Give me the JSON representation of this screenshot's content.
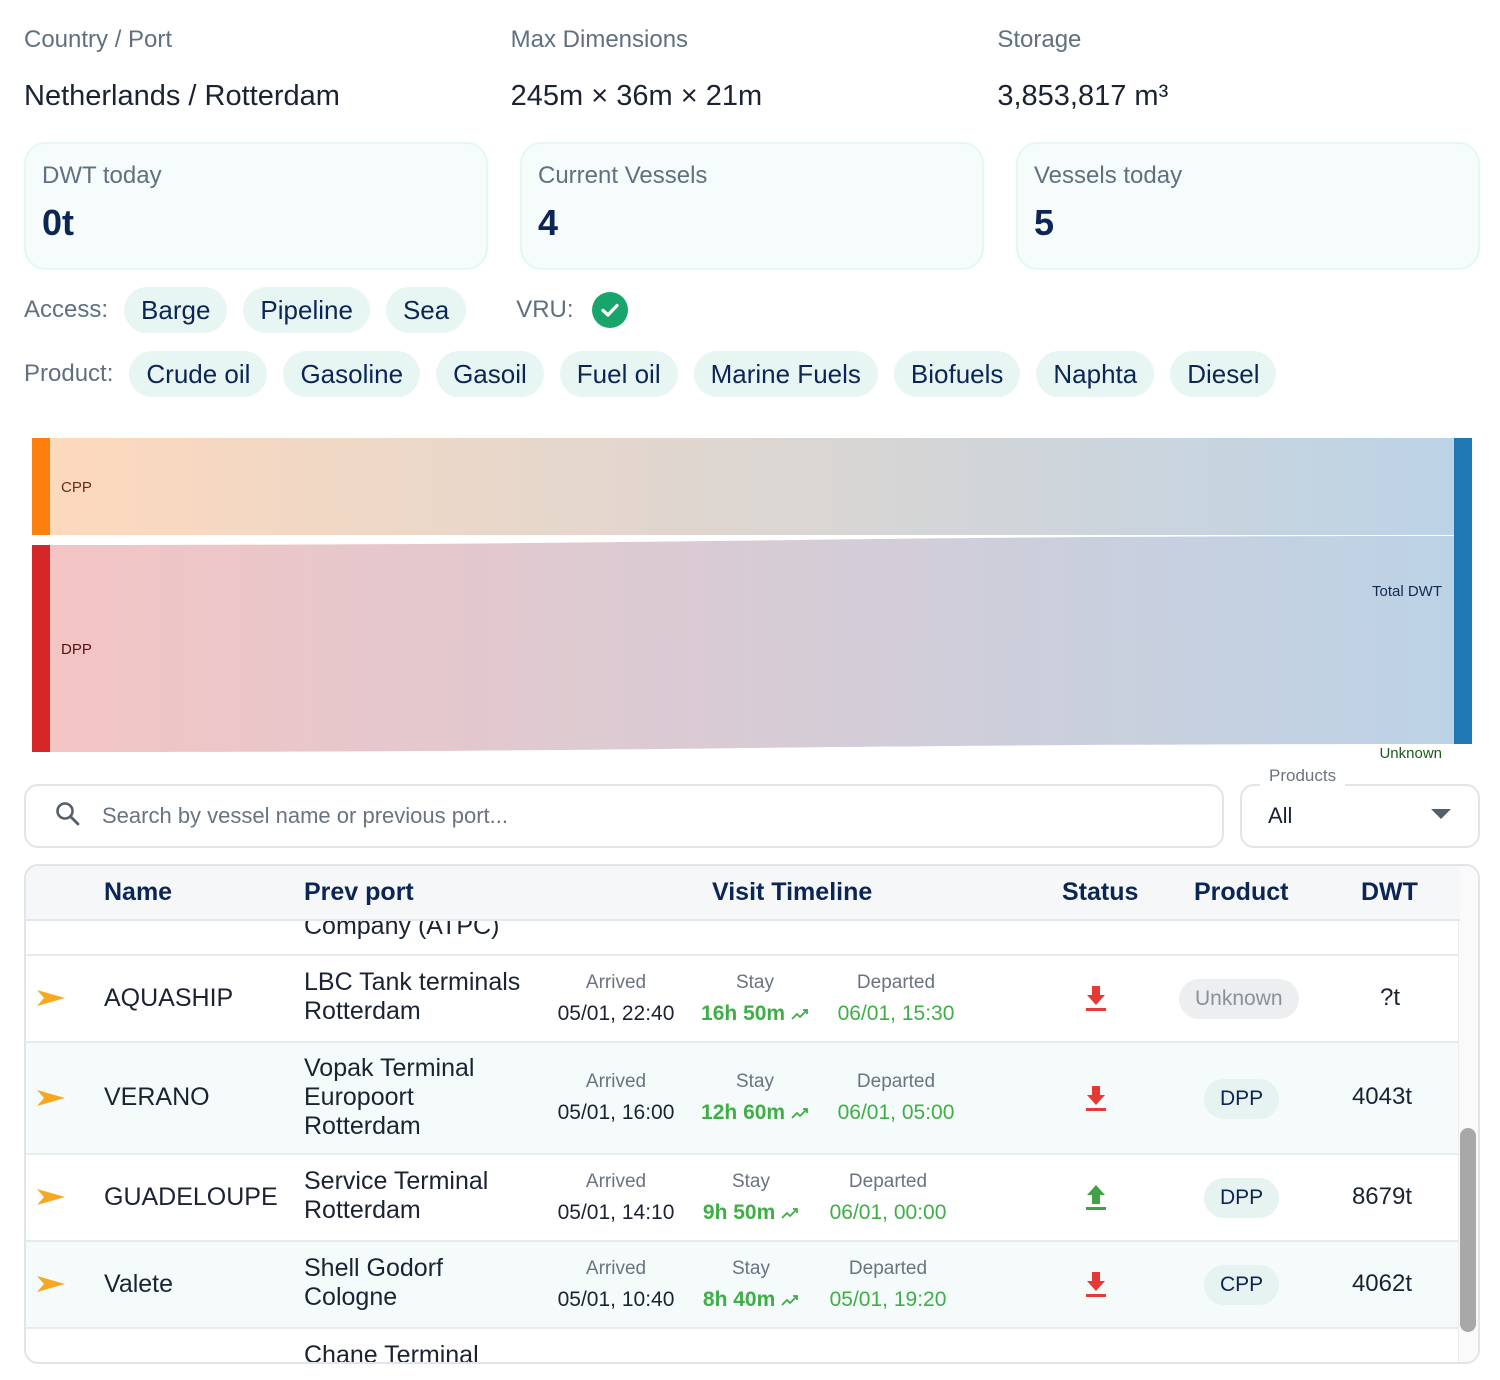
{
  "info": {
    "country_label": "Country / Port",
    "country_value": "Netherlands / Rotterdam",
    "dims_label": "Max Dimensions",
    "dims_value": "245m × 36m × 21m",
    "storage_label": "Storage",
    "storage_value": "3,853,817 m³"
  },
  "stats": {
    "dwt_label": "DWT today",
    "dwt_value": "0t",
    "current_label": "Current Vessels",
    "current_value": "4",
    "today_label": "Vessels today",
    "today_value": "5"
  },
  "access": {
    "label": "Access:",
    "chips": [
      "Barge",
      "Pipeline",
      "Sea"
    ],
    "vru_label": "VRU:"
  },
  "product": {
    "label": "Product:",
    "chips": [
      "Crude oil",
      "Gasoline",
      "Gasoil",
      "Fuel oil",
      "Marine Fuels",
      "Biofuels",
      "Naphta",
      "Diesel"
    ]
  },
  "sankey": {
    "nodes": [
      "CPP",
      "DPP",
      "Total DWT",
      "Unknown"
    ],
    "flows": [
      {
        "from": "CPP",
        "to": "Total DWT",
        "share": 0.32
      },
      {
        "from": "DPP",
        "to": "Total DWT",
        "share": 0.68
      }
    ],
    "colors": {
      "CPP": "#ff7f0e",
      "DPP": "#d62728",
      "Total DWT": "#1f77b4",
      "Unknown": "#2ca02c"
    }
  },
  "search": {
    "placeholder": "Search by vessel name or previous port..."
  },
  "products_filter": {
    "legend": "Products",
    "value": "All"
  },
  "table": {
    "headers": {
      "name": "Name",
      "prev_port": "Prev port",
      "timeline": "Visit Timeline",
      "status": "Status",
      "product": "Product",
      "dwt": "DWT"
    },
    "partial_top": {
      "prev_port": "Company (ATPC)"
    },
    "rows": [
      {
        "name": "AQUASHIP",
        "prev_port": [
          "LBC Tank terminals",
          "Rotterdam"
        ],
        "arrived_label": "Arrived",
        "arrived": "05/01, 22:40",
        "stay_label": "Stay",
        "stay": "16h 50m",
        "departed_label": "Departed",
        "departed": "06/01, 15:30",
        "status": "download",
        "product": "Unknown",
        "dwt": "?t"
      },
      {
        "name": "VERANO",
        "prev_port": [
          "Vopak Terminal",
          "Europoort",
          "Rotterdam"
        ],
        "arrived_label": "Arrived",
        "arrived": "05/01, 16:00",
        "stay_label": "Stay",
        "stay": "12h 60m",
        "departed_label": "Departed",
        "departed": "06/01, 05:00",
        "status": "download",
        "product": "DPP",
        "dwt": "4043t"
      },
      {
        "name": "GUADELOUPE",
        "prev_port": [
          "Service Terminal",
          "Rotterdam"
        ],
        "arrived_label": "Arrived",
        "arrived": "05/01, 14:10",
        "stay_label": "Stay",
        "stay": "9h 50m",
        "departed_label": "Departed",
        "departed": "06/01, 00:00",
        "status": "upload",
        "product": "DPP",
        "dwt": "8679t"
      },
      {
        "name": "Valete",
        "prev_port": [
          "Shell Godorf",
          "Cologne"
        ],
        "arrived_label": "Arrived",
        "arrived": "05/01, 10:40",
        "stay_label": "Stay",
        "stay": "8h 40m",
        "departed_label": "Departed",
        "departed": "05/01, 19:20",
        "status": "download",
        "product": "CPP",
        "dwt": "4062t"
      }
    ],
    "partial_bottom": {
      "prev_port": "Chane Terminal"
    }
  }
}
